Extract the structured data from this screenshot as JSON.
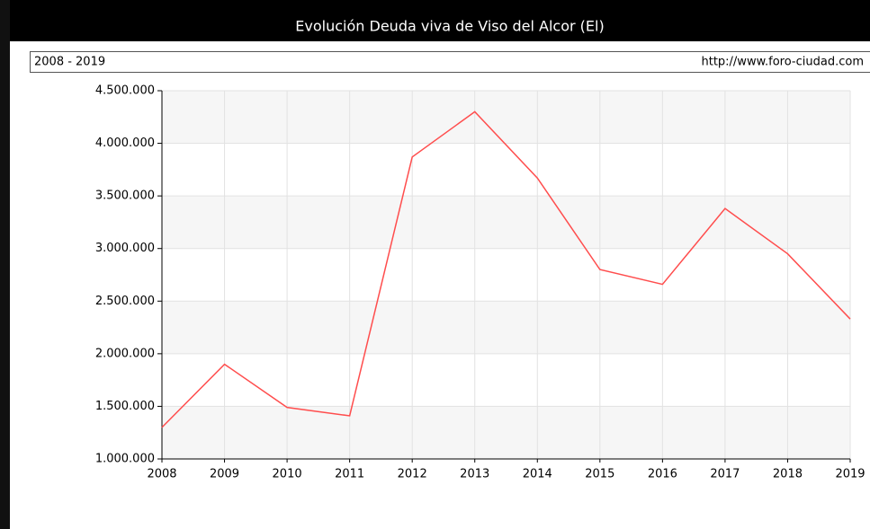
{
  "chart_data": {
    "type": "line",
    "title": "Evolución Deuda viva de Viso del Alcor (El)",
    "subtitle": "2008 - 2019",
    "source": "http://www.foro-ciudad.com",
    "x": [
      2008,
      2009,
      2010,
      2011,
      2012,
      2013,
      2014,
      2015,
      2016,
      2017,
      2018,
      2019
    ],
    "series": [
      {
        "color": "#ff4d4d",
        "values": [
          1300000,
          1900000,
          1490000,
          1410000,
          3870000,
          4300000,
          3670000,
          2800000,
          2660000,
          3380000,
          2950000,
          2330000
        ]
      }
    ],
    "xlim": [
      2008,
      2019
    ],
    "xticks": [
      2008,
      2009,
      2010,
      2011,
      2012,
      2013,
      2014,
      2015,
      2016,
      2017,
      2018,
      2019
    ],
    "ylim": [
      1000000,
      4500000
    ],
    "yticks": [
      {
        "value": 1000000,
        "label": "1.000.000"
      },
      {
        "value": 1500000,
        "label": "1.500.000"
      },
      {
        "value": 2000000,
        "label": "2.000.000"
      },
      {
        "value": 2500000,
        "label": "2.500.000"
      },
      {
        "value": 3000000,
        "label": "3.000.000"
      },
      {
        "value": 3500000,
        "label": "3.500.000"
      },
      {
        "value": 4000000,
        "label": "4.000.000"
      },
      {
        "value": 4500000,
        "label": "4.500.000"
      }
    ],
    "grid": true
  }
}
